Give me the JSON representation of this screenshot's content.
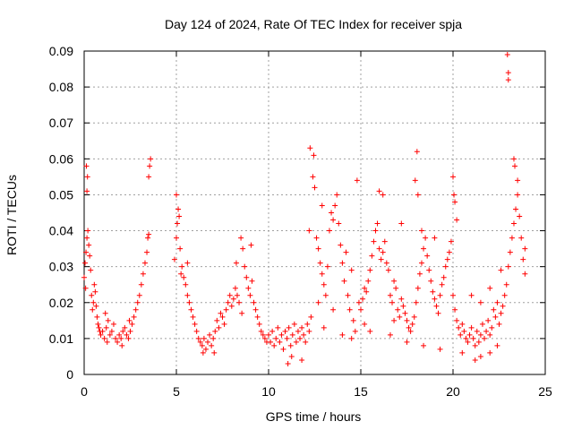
{
  "chart_data": {
    "type": "scatter",
    "title": "Day 124 of 2024, Rate Of TEC Index for receiver spja",
    "xlabel": "GPS time / hours",
    "ylabel": "ROTI / TECUs",
    "xlim": [
      0,
      25
    ],
    "ylim": [
      0,
      0.09
    ],
    "xticks": [
      0,
      5,
      10,
      15,
      20,
      25
    ],
    "xtick_labels": [
      "0",
      "5",
      "10",
      "15",
      "20",
      "25"
    ],
    "yticks": [
      0,
      0.01,
      0.02,
      0.03,
      0.04,
      0.05,
      0.06,
      0.07,
      0.08,
      0.09
    ],
    "ytick_labels": [
      "0",
      "0.01",
      "0.02",
      "0.03",
      "0.04",
      "0.05",
      "0.06",
      "0.07",
      "0.08",
      "0.09"
    ],
    "grid": true,
    "marker": "+",
    "marker_color": "#ff0000",
    "series": [
      {
        "name": "ROTI",
        "points": [
          [
            0.0,
            0.027
          ],
          [
            0.05,
            0.031
          ],
          [
            0.1,
            0.034
          ],
          [
            0.15,
            0.038
          ],
          [
            0.2,
            0.04
          ],
          [
            0.25,
            0.036
          ],
          [
            0.3,
            0.033
          ],
          [
            0.12,
            0.058
          ],
          [
            0.15,
            0.051
          ],
          [
            0.18,
            0.055
          ],
          [
            0.08,
            0.024
          ],
          [
            0.35,
            0.029
          ],
          [
            0.4,
            0.022
          ],
          [
            0.45,
            0.018
          ],
          [
            0.5,
            0.02
          ],
          [
            0.55,
            0.025
          ],
          [
            0.6,
            0.023
          ],
          [
            0.65,
            0.019
          ],
          [
            0.7,
            0.016
          ],
          [
            0.75,
            0.014
          ],
          [
            0.8,
            0.013
          ],
          [
            0.85,
            0.012
          ],
          [
            0.9,
            0.011
          ],
          [
            1.0,
            0.012
          ],
          [
            1.1,
            0.01
          ],
          [
            1.2,
            0.013
          ],
          [
            1.3,
            0.015
          ],
          [
            1.4,
            0.011
          ],
          [
            1.5,
            0.012
          ],
          [
            1.6,
            0.014
          ],
          [
            1.7,
            0.01
          ],
          [
            1.8,
            0.009
          ],
          [
            1.9,
            0.011
          ],
          [
            2.0,
            0.01
          ],
          [
            2.1,
            0.012
          ],
          [
            2.2,
            0.013
          ],
          [
            2.3,
            0.011
          ],
          [
            2.4,
            0.01
          ],
          [
            2.5,
            0.012
          ],
          [
            2.6,
            0.014
          ],
          [
            2.7,
            0.016
          ],
          [
            2.8,
            0.018
          ],
          [
            2.9,
            0.02
          ],
          [
            3.0,
            0.022
          ],
          [
            3.1,
            0.025
          ],
          [
            3.2,
            0.028
          ],
          [
            3.3,
            0.031
          ],
          [
            3.4,
            0.034
          ],
          [
            3.45,
            0.038
          ],
          [
            3.5,
            0.055
          ],
          [
            3.55,
            0.058
          ],
          [
            3.6,
            0.06
          ],
          [
            3.5,
            0.039
          ],
          [
            1.15,
            0.017
          ],
          [
            1.25,
            0.009
          ],
          [
            2.05,
            0.008
          ],
          [
            2.45,
            0.015
          ],
          [
            4.9,
            0.032
          ],
          [
            5.0,
            0.038
          ],
          [
            5.05,
            0.042
          ],
          [
            5.1,
            0.046
          ],
          [
            5.15,
            0.044
          ],
          [
            5.0,
            0.05
          ],
          [
            5.2,
            0.035
          ],
          [
            5.3,
            0.03
          ],
          [
            5.4,
            0.027
          ],
          [
            5.5,
            0.025
          ],
          [
            5.6,
            0.022
          ],
          [
            5.7,
            0.02
          ],
          [
            5.8,
            0.018
          ],
          [
            5.9,
            0.016
          ],
          [
            6.0,
            0.014
          ],
          [
            6.1,
            0.012
          ],
          [
            6.2,
            0.01
          ],
          [
            6.3,
            0.009
          ],
          [
            6.4,
            0.008
          ],
          [
            6.5,
            0.01
          ],
          [
            6.6,
            0.007
          ],
          [
            6.7,
            0.009
          ],
          [
            6.8,
            0.011
          ],
          [
            6.9,
            0.008
          ],
          [
            7.0,
            0.01
          ],
          [
            7.1,
            0.012
          ],
          [
            7.2,
            0.015
          ],
          [
            7.3,
            0.013
          ],
          [
            7.4,
            0.017
          ],
          [
            7.5,
            0.016
          ],
          [
            7.6,
            0.014
          ],
          [
            7.7,
            0.018
          ],
          [
            7.8,
            0.02
          ],
          [
            7.9,
            0.022
          ],
          [
            8.0,
            0.019
          ],
          [
            8.1,
            0.021
          ],
          [
            8.2,
            0.024
          ],
          [
            8.3,
            0.022
          ],
          [
            8.4,
            0.02
          ],
          [
            8.5,
            0.038
          ],
          [
            8.6,
            0.035
          ],
          [
            8.7,
            0.03
          ],
          [
            8.8,
            0.027
          ],
          [
            8.9,
            0.024
          ],
          [
            9.0,
            0.022
          ],
          [
            9.1,
            0.026
          ],
          [
            9.2,
            0.02
          ],
          [
            9.3,
            0.018
          ],
          [
            9.4,
            0.016
          ],
          [
            9.5,
            0.014
          ],
          [
            9.6,
            0.012
          ],
          [
            9.7,
            0.011
          ],
          [
            9.8,
            0.01
          ],
          [
            9.9,
            0.009
          ],
          [
            5.6,
            0.031
          ],
          [
            5.25,
            0.028
          ],
          [
            6.45,
            0.006
          ],
          [
            7.05,
            0.006
          ],
          [
            8.25,
            0.031
          ],
          [
            9.05,
            0.036
          ],
          [
            8.55,
            0.017
          ],
          [
            10.0,
            0.011
          ],
          [
            10.1,
            0.009
          ],
          [
            10.2,
            0.012
          ],
          [
            10.3,
            0.008
          ],
          [
            10.4,
            0.01
          ],
          [
            10.5,
            0.013
          ],
          [
            10.6,
            0.009
          ],
          [
            10.7,
            0.011
          ],
          [
            10.8,
            0.007
          ],
          [
            10.9,
            0.012
          ],
          [
            11.0,
            0.01
          ],
          [
            11.1,
            0.013
          ],
          [
            11.2,
            0.008
          ],
          [
            11.3,
            0.011
          ],
          [
            11.4,
            0.014
          ],
          [
            11.5,
            0.009
          ],
          [
            11.6,
            0.012
          ],
          [
            11.7,
            0.01
          ],
          [
            11.8,
            0.013
          ],
          [
            11.9,
            0.011
          ],
          [
            12.0,
            0.009
          ],
          [
            12.1,
            0.014
          ],
          [
            12.2,
            0.012
          ],
          [
            11.05,
            0.003
          ],
          [
            11.25,
            0.005
          ],
          [
            11.8,
            0.004
          ],
          [
            12.25,
            0.063
          ],
          [
            12.45,
            0.061
          ],
          [
            12.4,
            0.055
          ],
          [
            12.5,
            0.052
          ],
          [
            12.6,
            0.038
          ],
          [
            12.7,
            0.035
          ],
          [
            12.8,
            0.031
          ],
          [
            12.9,
            0.028
          ],
          [
            13.0,
            0.025
          ],
          [
            13.1,
            0.022
          ],
          [
            13.2,
            0.03
          ],
          [
            13.3,
            0.04
          ],
          [
            13.4,
            0.045
          ],
          [
            13.5,
            0.043
          ],
          [
            13.6,
            0.047
          ],
          [
            13.7,
            0.05
          ],
          [
            13.8,
            0.042
          ],
          [
            13.9,
            0.036
          ],
          [
            14.0,
            0.031
          ],
          [
            14.1,
            0.026
          ],
          [
            14.2,
            0.034
          ],
          [
            14.3,
            0.022
          ],
          [
            14.4,
            0.018
          ],
          [
            14.5,
            0.029
          ],
          [
            14.6,
            0.015
          ],
          [
            14.7,
            0.012
          ],
          [
            14.8,
            0.054
          ],
          [
            14.9,
            0.02
          ],
          [
            12.3,
            0.016
          ],
          [
            12.7,
            0.02
          ],
          [
            13.0,
            0.013
          ],
          [
            13.5,
            0.018
          ],
          [
            14.0,
            0.011
          ],
          [
            14.5,
            0.01
          ],
          [
            12.2,
            0.04
          ],
          [
            12.9,
            0.047
          ],
          [
            15.0,
            0.018
          ],
          [
            15.1,
            0.021
          ],
          [
            15.2,
            0.024
          ],
          [
            15.3,
            0.023
          ],
          [
            15.4,
            0.026
          ],
          [
            15.5,
            0.029
          ],
          [
            15.6,
            0.033
          ],
          [
            15.7,
            0.037
          ],
          [
            15.8,
            0.04
          ],
          [
            15.9,
            0.042
          ],
          [
            16.0,
            0.035
          ],
          [
            16.1,
            0.032
          ],
          [
            16.2,
            0.034
          ],
          [
            16.3,
            0.037
          ],
          [
            16.4,
            0.031
          ],
          [
            16.5,
            0.029
          ],
          [
            16.6,
            0.022
          ],
          [
            16.7,
            0.02
          ],
          [
            16.8,
            0.026
          ],
          [
            16.9,
            0.024
          ],
          [
            17.0,
            0.018
          ],
          [
            17.1,
            0.016
          ],
          [
            17.2,
            0.021
          ],
          [
            17.3,
            0.019
          ],
          [
            17.4,
            0.017
          ],
          [
            17.5,
            0.015
          ],
          [
            17.6,
            0.013
          ],
          [
            17.7,
            0.012
          ],
          [
            17.8,
            0.014
          ],
          [
            17.9,
            0.016
          ],
          [
            18.0,
            0.02
          ],
          [
            18.1,
            0.024
          ],
          [
            18.2,
            0.028
          ],
          [
            18.3,
            0.031
          ],
          [
            18.4,
            0.035
          ],
          [
            18.5,
            0.038
          ],
          [
            18.6,
            0.033
          ],
          [
            18.7,
            0.029
          ],
          [
            18.8,
            0.026
          ],
          [
            18.9,
            0.023
          ],
          [
            19.0,
            0.021
          ],
          [
            19.1,
            0.019
          ],
          [
            19.2,
            0.017
          ],
          [
            19.3,
            0.022
          ],
          [
            19.4,
            0.025
          ],
          [
            19.5,
            0.027
          ],
          [
            19.6,
            0.03
          ],
          [
            19.7,
            0.032
          ],
          [
            19.8,
            0.034
          ],
          [
            19.9,
            0.037
          ],
          [
            16.0,
            0.051
          ],
          [
            16.2,
            0.05
          ],
          [
            17.2,
            0.042
          ],
          [
            18.05,
            0.062
          ],
          [
            17.95,
            0.054
          ],
          [
            18.1,
            0.05
          ],
          [
            18.3,
            0.04
          ],
          [
            19.0,
            0.038
          ],
          [
            15.5,
            0.012
          ],
          [
            16.6,
            0.011
          ],
          [
            17.5,
            0.009
          ],
          [
            18.4,
            0.008
          ],
          [
            19.3,
            0.007
          ],
          [
            16.8,
            0.015
          ],
          [
            15.2,
            0.014
          ],
          [
            20.0,
            0.022
          ],
          [
            20.1,
            0.018
          ],
          [
            20.2,
            0.015
          ],
          [
            20.3,
            0.013
          ],
          [
            20.4,
            0.011
          ],
          [
            20.5,
            0.014
          ],
          [
            20.6,
            0.012
          ],
          [
            20.7,
            0.01
          ],
          [
            20.8,
            0.009
          ],
          [
            20.9,
            0.011
          ],
          [
            21.0,
            0.013
          ],
          [
            21.1,
            0.01
          ],
          [
            21.2,
            0.008
          ],
          [
            21.3,
            0.012
          ],
          [
            21.4,
            0.009
          ],
          [
            21.5,
            0.011
          ],
          [
            21.6,
            0.014
          ],
          [
            21.7,
            0.01
          ],
          [
            21.8,
            0.012
          ],
          [
            21.9,
            0.015
          ],
          [
            22.0,
            0.011
          ],
          [
            22.1,
            0.013
          ],
          [
            22.2,
            0.018
          ],
          [
            22.3,
            0.016
          ],
          [
            22.4,
            0.02
          ],
          [
            22.5,
            0.014
          ],
          [
            22.6,
            0.017
          ],
          [
            22.7,
            0.019
          ],
          [
            22.8,
            0.022
          ],
          [
            22.9,
            0.025
          ],
          [
            23.0,
            0.03
          ],
          [
            23.1,
            0.034
          ],
          [
            23.2,
            0.038
          ],
          [
            23.3,
            0.042
          ],
          [
            23.4,
            0.046
          ],
          [
            23.5,
            0.05
          ],
          [
            23.6,
            0.044
          ],
          [
            23.7,
            0.038
          ],
          [
            23.8,
            0.032
          ],
          [
            23.9,
            0.028
          ],
          [
            20.0,
            0.055
          ],
          [
            20.1,
            0.048
          ],
          [
            20.2,
            0.043
          ],
          [
            20.05,
            0.05
          ],
          [
            22.95,
            0.089
          ],
          [
            23.0,
            0.084
          ],
          [
            23.0,
            0.082
          ],
          [
            23.3,
            0.06
          ],
          [
            23.35,
            0.058
          ],
          [
            23.5,
            0.054
          ],
          [
            20.5,
            0.006
          ],
          [
            21.2,
            0.004
          ],
          [
            21.5,
            0.005
          ],
          [
            22.0,
            0.006
          ],
          [
            22.4,
            0.008
          ],
          [
            21.0,
            0.022
          ],
          [
            21.5,
            0.02
          ],
          [
            22.0,
            0.024
          ],
          [
            22.6,
            0.029
          ],
          [
            23.9,
            0.035
          ]
        ]
      }
    ]
  }
}
